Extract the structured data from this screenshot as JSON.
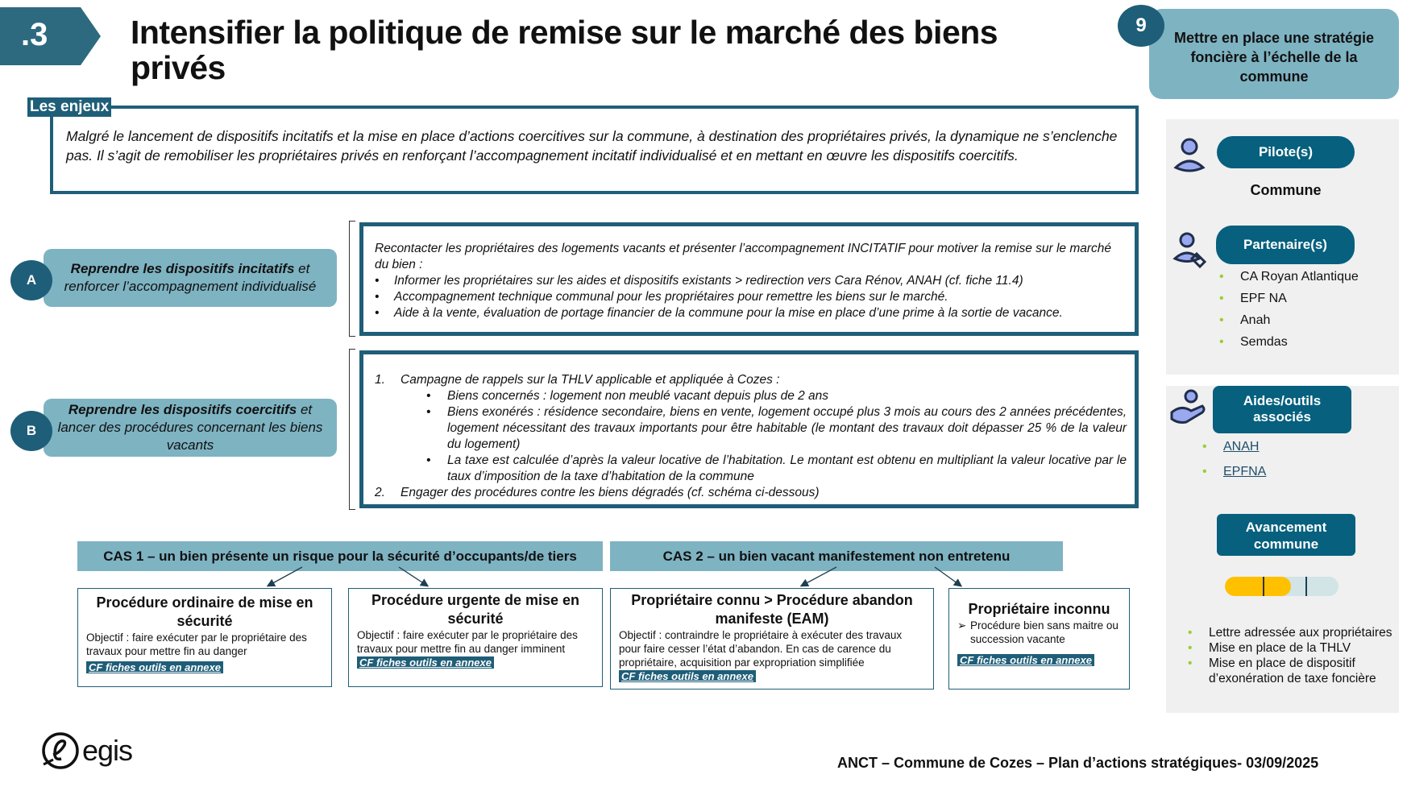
{
  "header": {
    "number": ".3",
    "title": "Intensifier la politique de remise sur le marché des biens privés"
  },
  "axis": {
    "number": "9",
    "label": "Mettre en place une stratégie foncière à l’échelle de la commune"
  },
  "enjeux": {
    "label": "Les enjeux",
    "text": "Malgré le lancement de dispositifs incitatifs et la mise en place d’actions coercitives sur la commune, à destination des propriétaires privés, la dynamique ne s’enclenche pas. Il s’agit de remobiliser les propriétaires privés en renforçant l’accompagnement incitatif individualisé et en mettant en œuvre les dispositifs coercitifs."
  },
  "actionA": {
    "letter": "A",
    "bold": "Reprendre les dispositifs incitatifs",
    "rest": " et renforcer l’accompagnement individualisé",
    "intro": "Recontacter les propriétaires des logements vacants et présenter l’accompagnement INCITATIF pour motiver la remise sur le marché du bien :",
    "bullets": [
      "Informer les propriétaires sur les aides et dispositifs existants > redirection vers  Cara Rénov, ANAH (cf. fiche 11.4)",
      "Accompagnement technique communal pour les propriétaires pour remettre les biens sur le marché.",
      "Aide à la vente, évaluation de portage financier de la commune pour la mise en place d’une prime à la sortie de vacance."
    ]
  },
  "actionB": {
    "letter": "B",
    "bold": "Reprendre les dispositifs coercitifs",
    "rest": " et lancer des procédures concernant les biens vacants",
    "item1": {
      "n": "1.",
      "text": "Campagne de rappels sur la THLV applicable et appliquée à Cozes :",
      "subs": [
        "Biens concernés : logement non meublé vacant depuis plus de 2 ans",
        "Biens exonérés : résidence secondaire, biens en vente, logement occupé plus 3 mois au cours des 2 années précédentes, logement nécessitant des travaux importants pour être habitable (le montant des travaux doit dépasser 25 % de la valeur du logement)",
        "La taxe est calculée d’après la valeur locative de l’habitation. Le montant est obtenu en multipliant la valeur locative par le taux d’imposition de la taxe d’habitation de la commune"
      ]
    },
    "item2": {
      "n": "2.",
      "text": "Engager des procédures contre les biens dégradés (cf. schéma ci-dessous)"
    }
  },
  "cas": [
    {
      "title": "CAS 1 – un bien présente un risque pour la sécurité d’occupants/de tiers"
    },
    {
      "title": "CAS 2 – un bien vacant manifestement non entretenu"
    }
  ],
  "cards": [
    {
      "title": "Procédure ordinaire de mise en sécurité",
      "text": "Objectif : faire exécuter par le propriétaire des travaux pour mettre fin au danger",
      "link": "CF fiches outils en annexe"
    },
    {
      "title": "Procédure urgente de mise en sécurité",
      "text": "Objectif : faire exécuter par le propriétaire des travaux pour mettre fin au danger imminent",
      "link": "CF fiches outils en annexe"
    },
    {
      "title": "Propriétaire connu > Procédure abandon manifeste (EAM)",
      "text": "Objectif : contraindre le propriétaire à exécuter des travaux pour faire cesser l’état d’abandon. En cas de carence du propriétaire, acquisition par expropriation simplifiée",
      "link": "CF fiches outils en annexe"
    },
    {
      "title": "Propriétaire inconnu",
      "text": "Procédure bien sans maitre ou succession vacante",
      "link": "CF fiches outils en annexe"
    }
  ],
  "side": {
    "pilote_label": "Pilote(s)",
    "pilote": "Commune",
    "partenaires_label": "Partenaire(s)",
    "partenaires": [
      "CA Royan Atlantique",
      "EPF NA",
      "Anah",
      "Semdas"
    ],
    "aides_label": "Aides/outils associés",
    "aides": [
      "ANAH",
      "EPFNA"
    ],
    "avancement_label": "Avancement commune",
    "progress": 0.58,
    "progress_color": "#FFC000",
    "avancement": [
      "Lettre adressée aux propriétaires",
      "Mise en place de la THLV",
      "Mise en place de dispositif d’exonération de taxe foncière"
    ]
  },
  "footer": {
    "logo": "egis",
    "text": "ANCT – Commune de Cozes – Plan d’actions stratégiques- 03/09/2025"
  },
  "colors": {
    "primary": "#1f5e78",
    "light": "#7eb3c2"
  }
}
